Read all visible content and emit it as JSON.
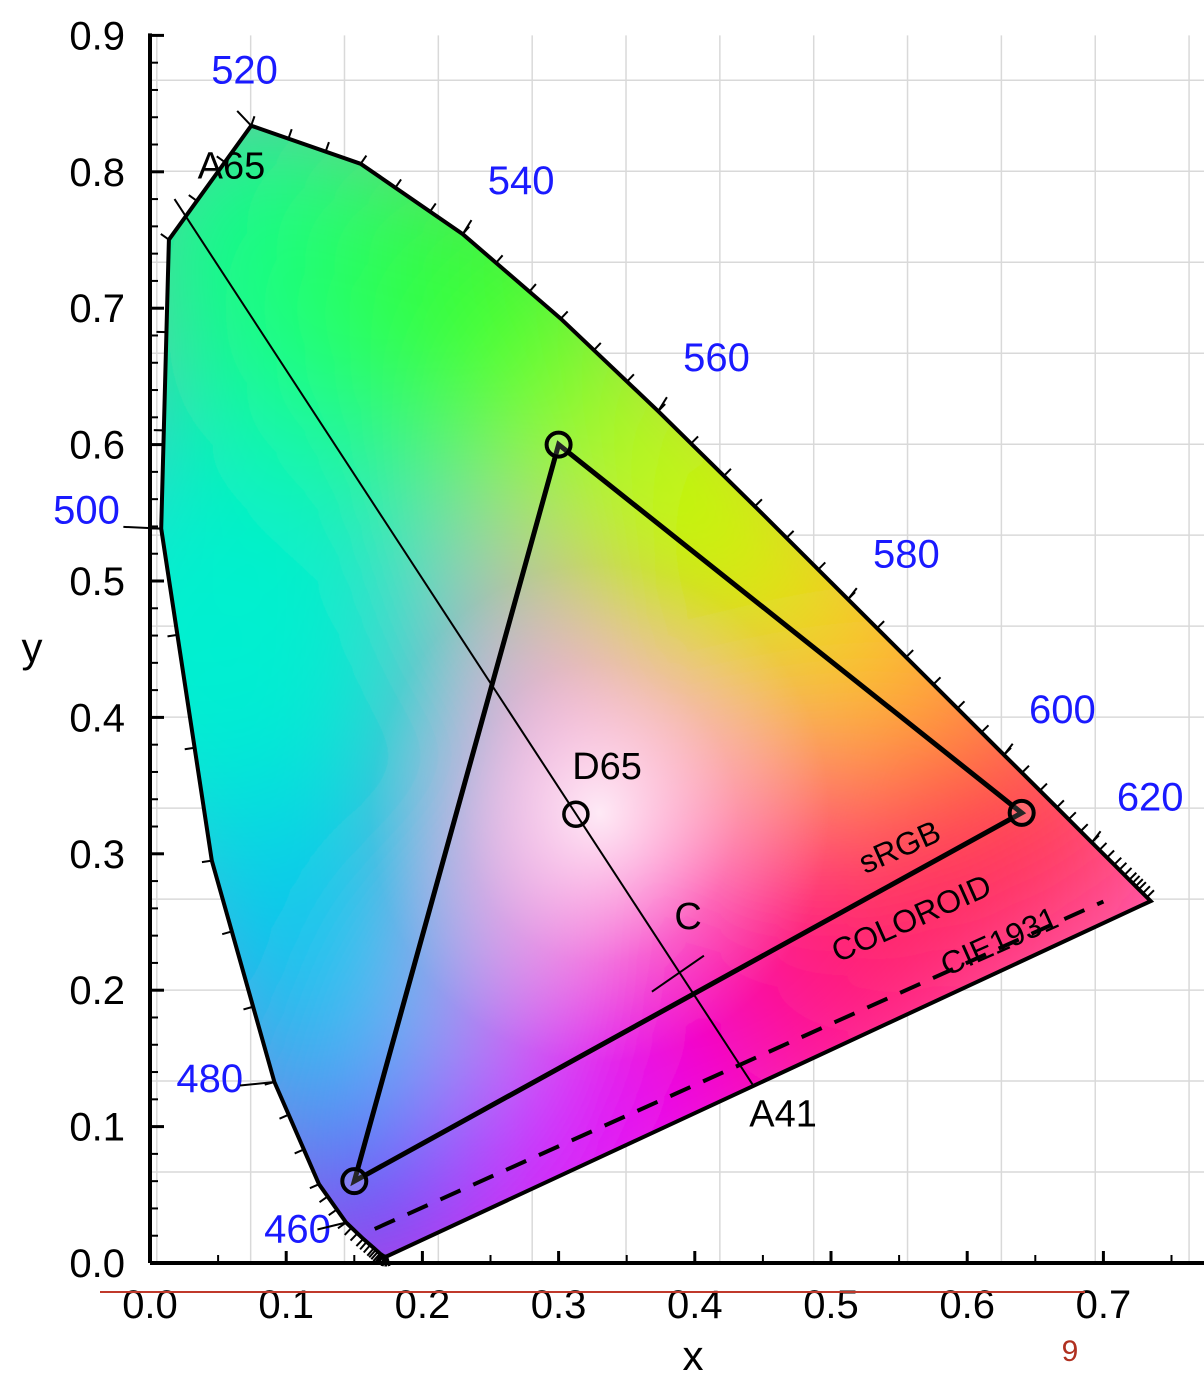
{
  "chart_data": {
    "type": "chromaticity-diagram",
    "xlabel": "x",
    "ylabel": "y",
    "xlim": [
      0.0,
      0.75
    ],
    "ylim": [
      0.0,
      0.9
    ],
    "x_ticks": [
      "0.0",
      "0.1",
      "0.2",
      "0.3",
      "0.4",
      "0.5",
      "0.6",
      "0.7"
    ],
    "y_ticks": [
      "0.0",
      "0.1",
      "0.2",
      "0.3",
      "0.4",
      "0.5",
      "0.6",
      "0.7",
      "0.8",
      "0.9"
    ],
    "grid": true,
    "spectral_locus": [
      [
        0.1741,
        0.005
      ],
      [
        0.1733,
        0.0048
      ],
      [
        0.1726,
        0.0048
      ],
      [
        0.1714,
        0.0051
      ],
      [
        0.1689,
        0.0069
      ],
      [
        0.1644,
        0.0109
      ],
      [
        0.1566,
        0.0177
      ],
      [
        0.144,
        0.0297
      ],
      [
        0.1241,
        0.0578
      ],
      [
        0.0913,
        0.1327
      ],
      [
        0.0454,
        0.295
      ],
      [
        0.0082,
        0.5384
      ],
      [
        0.0139,
        0.7502
      ],
      [
        0.0743,
        0.8338
      ],
      [
        0.1547,
        0.8059
      ],
      [
        0.2296,
        0.7543
      ],
      [
        0.3016,
        0.6923
      ],
      [
        0.3731,
        0.6245
      ],
      [
        0.4441,
        0.5547
      ],
      [
        0.5125,
        0.4866
      ],
      [
        0.5752,
        0.4242
      ],
      [
        0.627,
        0.3725
      ],
      [
        0.6658,
        0.334
      ],
      [
        0.6915,
        0.3083
      ],
      [
        0.7079,
        0.292
      ],
      [
        0.719,
        0.2809
      ],
      [
        0.726,
        0.274
      ],
      [
        0.7347,
        0.2653
      ]
    ],
    "wavelength_labels": [
      {
        "text": "460",
        "x": 0.144,
        "y": 0.0297
      },
      {
        "text": "480",
        "x": 0.0913,
        "y": 0.1327
      },
      {
        "text": "500",
        "x": 0.0082,
        "y": 0.5384
      },
      {
        "text": "520",
        "x": 0.0743,
        "y": 0.8338
      },
      {
        "text": "540",
        "x": 0.2296,
        "y": 0.7543
      },
      {
        "text": "560",
        "x": 0.3731,
        "y": 0.6245
      },
      {
        "text": "580",
        "x": 0.5125,
        "y": 0.4866
      },
      {
        "text": "600",
        "x": 0.627,
        "y": 0.3725
      },
      {
        "text": "620",
        "x": 0.6915,
        "y": 0.3083
      }
    ],
    "srgb_gamut": {
      "red": [
        0.64,
        0.33
      ],
      "green": [
        0.3,
        0.6
      ],
      "blue": [
        0.15,
        0.06
      ]
    },
    "points": [
      {
        "label": "D65",
        "x": 0.3127,
        "y": 0.329
      },
      {
        "label": "A65",
        "x": 0.018,
        "y": 0.78
      },
      {
        "label": "A41",
        "x": 0.443,
        "y": 0.13
      },
      {
        "label": "C",
        "x": 0.3101,
        "y": 0.3162
      }
    ],
    "purple_lines": [
      {
        "label": "CIE1931",
        "from": [
          0.15,
          0.06
        ],
        "to": [
          0.64,
          0.33
        ]
      },
      {
        "label": "COLOROID",
        "from": [
          0.16,
          0.055
        ],
        "to": [
          0.705,
          0.28
        ]
      }
    ],
    "region_labels": [
      "sRGB",
      "COLOROID",
      "CIE1931"
    ],
    "colors": {
      "axis": "#000000",
      "wavelength_text": "#1a1aff",
      "grid": "#d9d9d9",
      "slide_number": "#b03020"
    }
  },
  "slide_number": "9"
}
